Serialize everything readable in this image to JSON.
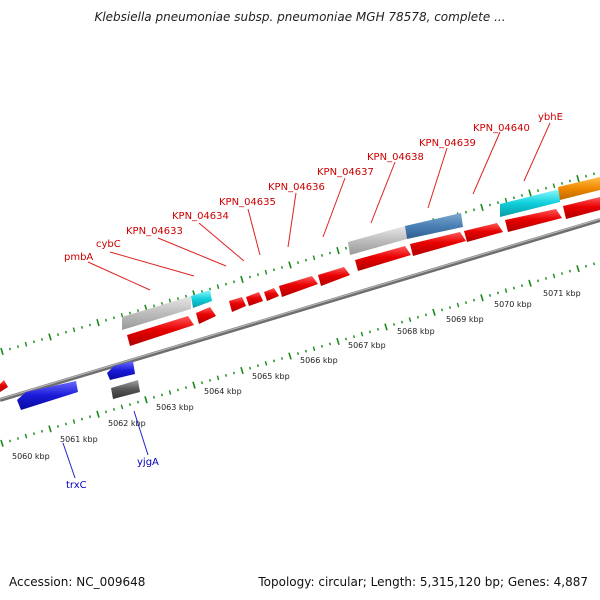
{
  "title": "Klebsiella pneumoniae subsp. pneumoniae MGH 78578, complete ...",
  "footer": {
    "accession": "Accession: NC_009648",
    "summary": "Topology: circular; Length: 5,315,120 bp; Genes: 4,887"
  },
  "scale_labels": [
    "5060 kbp",
    "5061 kbp",
    "5062 kbp",
    "5063 kbp",
    "5064 kbp",
    "5065 kbp",
    "5066 kbp",
    "5067 kbp",
    "5068 kbp",
    "5069 kbp",
    "5070 kbp",
    "5071 kbp"
  ],
  "forward_gene_labels": [
    "pmbA",
    "cybC",
    "KPN_04633",
    "KPN_04634",
    "KPN_04635",
    "KPN_04636",
    "KPN_04637",
    "KPN_04638",
    "KPN_04639",
    "KPN_04640",
    "ybhE"
  ],
  "reverse_gene_labels": [
    "trxC",
    "yjgA"
  ],
  "colors": {
    "cds": "#e00000",
    "gene": "#b8b8b8",
    "trna": "#00d8e0",
    "rrna": "#4a7fb5",
    "other": "#f08800",
    "reverse_cds": "#1a1ad8",
    "reverse_gene": "#555555",
    "backbone": "#888888",
    "ticks": "#1a8a1a",
    "forward_label": "#cc0000",
    "reverse_label": "#0000bb"
  }
}
